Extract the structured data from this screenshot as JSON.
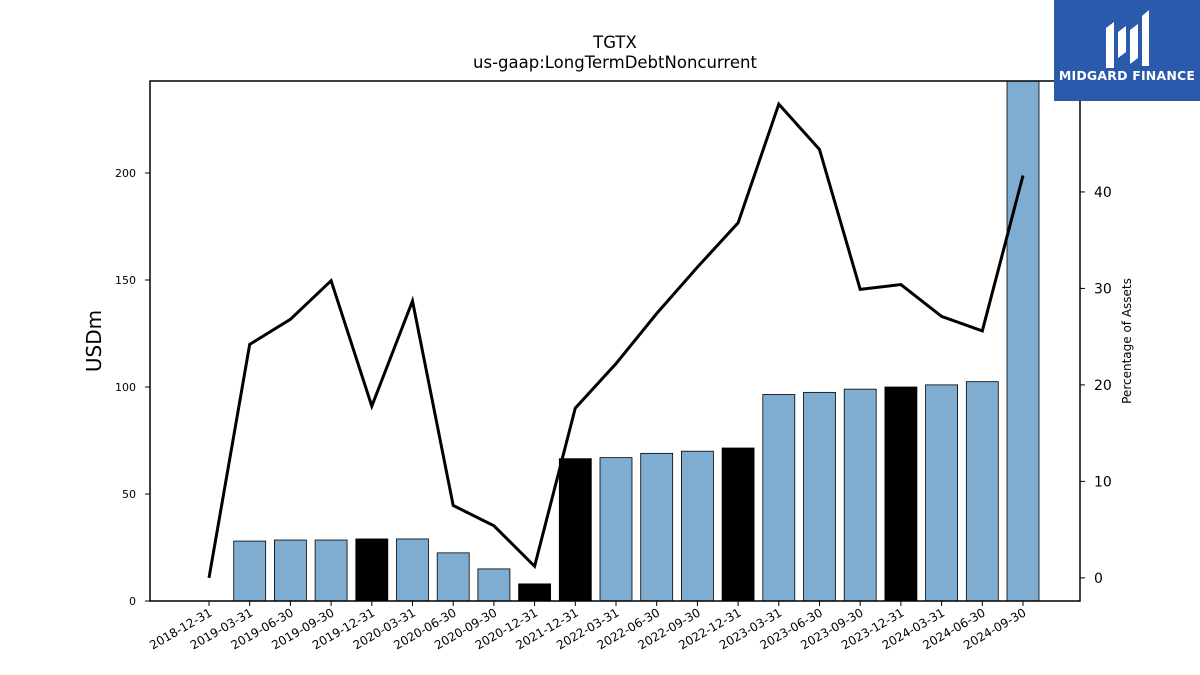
{
  "chart_data": {
    "type": "bar",
    "title": "TGTX",
    "subtitle": "us-gaap:LongTermDebtNoncurrent",
    "ylabel": "USDm",
    "y2label": "Percentage of Assets",
    "categories": [
      "2018-12-31",
      "2019-03-31",
      "2019-06-30",
      "2019-09-30",
      "2019-12-31",
      "2020-03-31",
      "2020-06-30",
      "2020-09-30",
      "2020-12-31",
      "2021-12-31",
      "2022-03-31",
      "2022-06-30",
      "2022-09-30",
      "2022-12-31",
      "2023-03-31",
      "2023-06-30",
      "2023-09-30",
      "2023-12-31",
      "2024-03-31",
      "2024-06-30",
      "2024-09-30"
    ],
    "series": [
      {
        "type": "bar",
        "values": [
          0,
          28,
          28.5,
          28.5,
          29,
          29,
          22.5,
          15,
          8,
          66.5,
          67,
          69,
          70,
          71.5,
          96.5,
          97.5,
          99,
          100,
          101,
          102.5,
          250
        ],
        "highlight": [
          false,
          false,
          false,
          false,
          true,
          false,
          false,
          false,
          true,
          true,
          false,
          false,
          false,
          true,
          false,
          false,
          false,
          true,
          false,
          false,
          false
        ]
      },
      {
        "type": "line",
        "axis": "right",
        "values": [
          0,
          24.2,
          26.8,
          30.8,
          17.8,
          28.7,
          7.5,
          5.4,
          1.2,
          17.6,
          22.2,
          27.4,
          32.2,
          36.8,
          49.1,
          44.4,
          29.9,
          30.4,
          27.1,
          25.6,
          41.7
        ]
      }
    ],
    "ylim": [
      0,
      243
    ],
    "y2lim": [
      -2.4,
      51.5
    ],
    "yticks": [
      0,
      50,
      100,
      150,
      200
    ],
    "y2ticks": [
      0,
      10,
      20,
      30,
      40
    ],
    "grid": false,
    "colors": {
      "bar": "#7eadd1",
      "highlight": "#000000",
      "line": "#000000"
    }
  },
  "logo": {
    "text": "MIDGARD FINANCE",
    "background": "#2b59ac"
  }
}
